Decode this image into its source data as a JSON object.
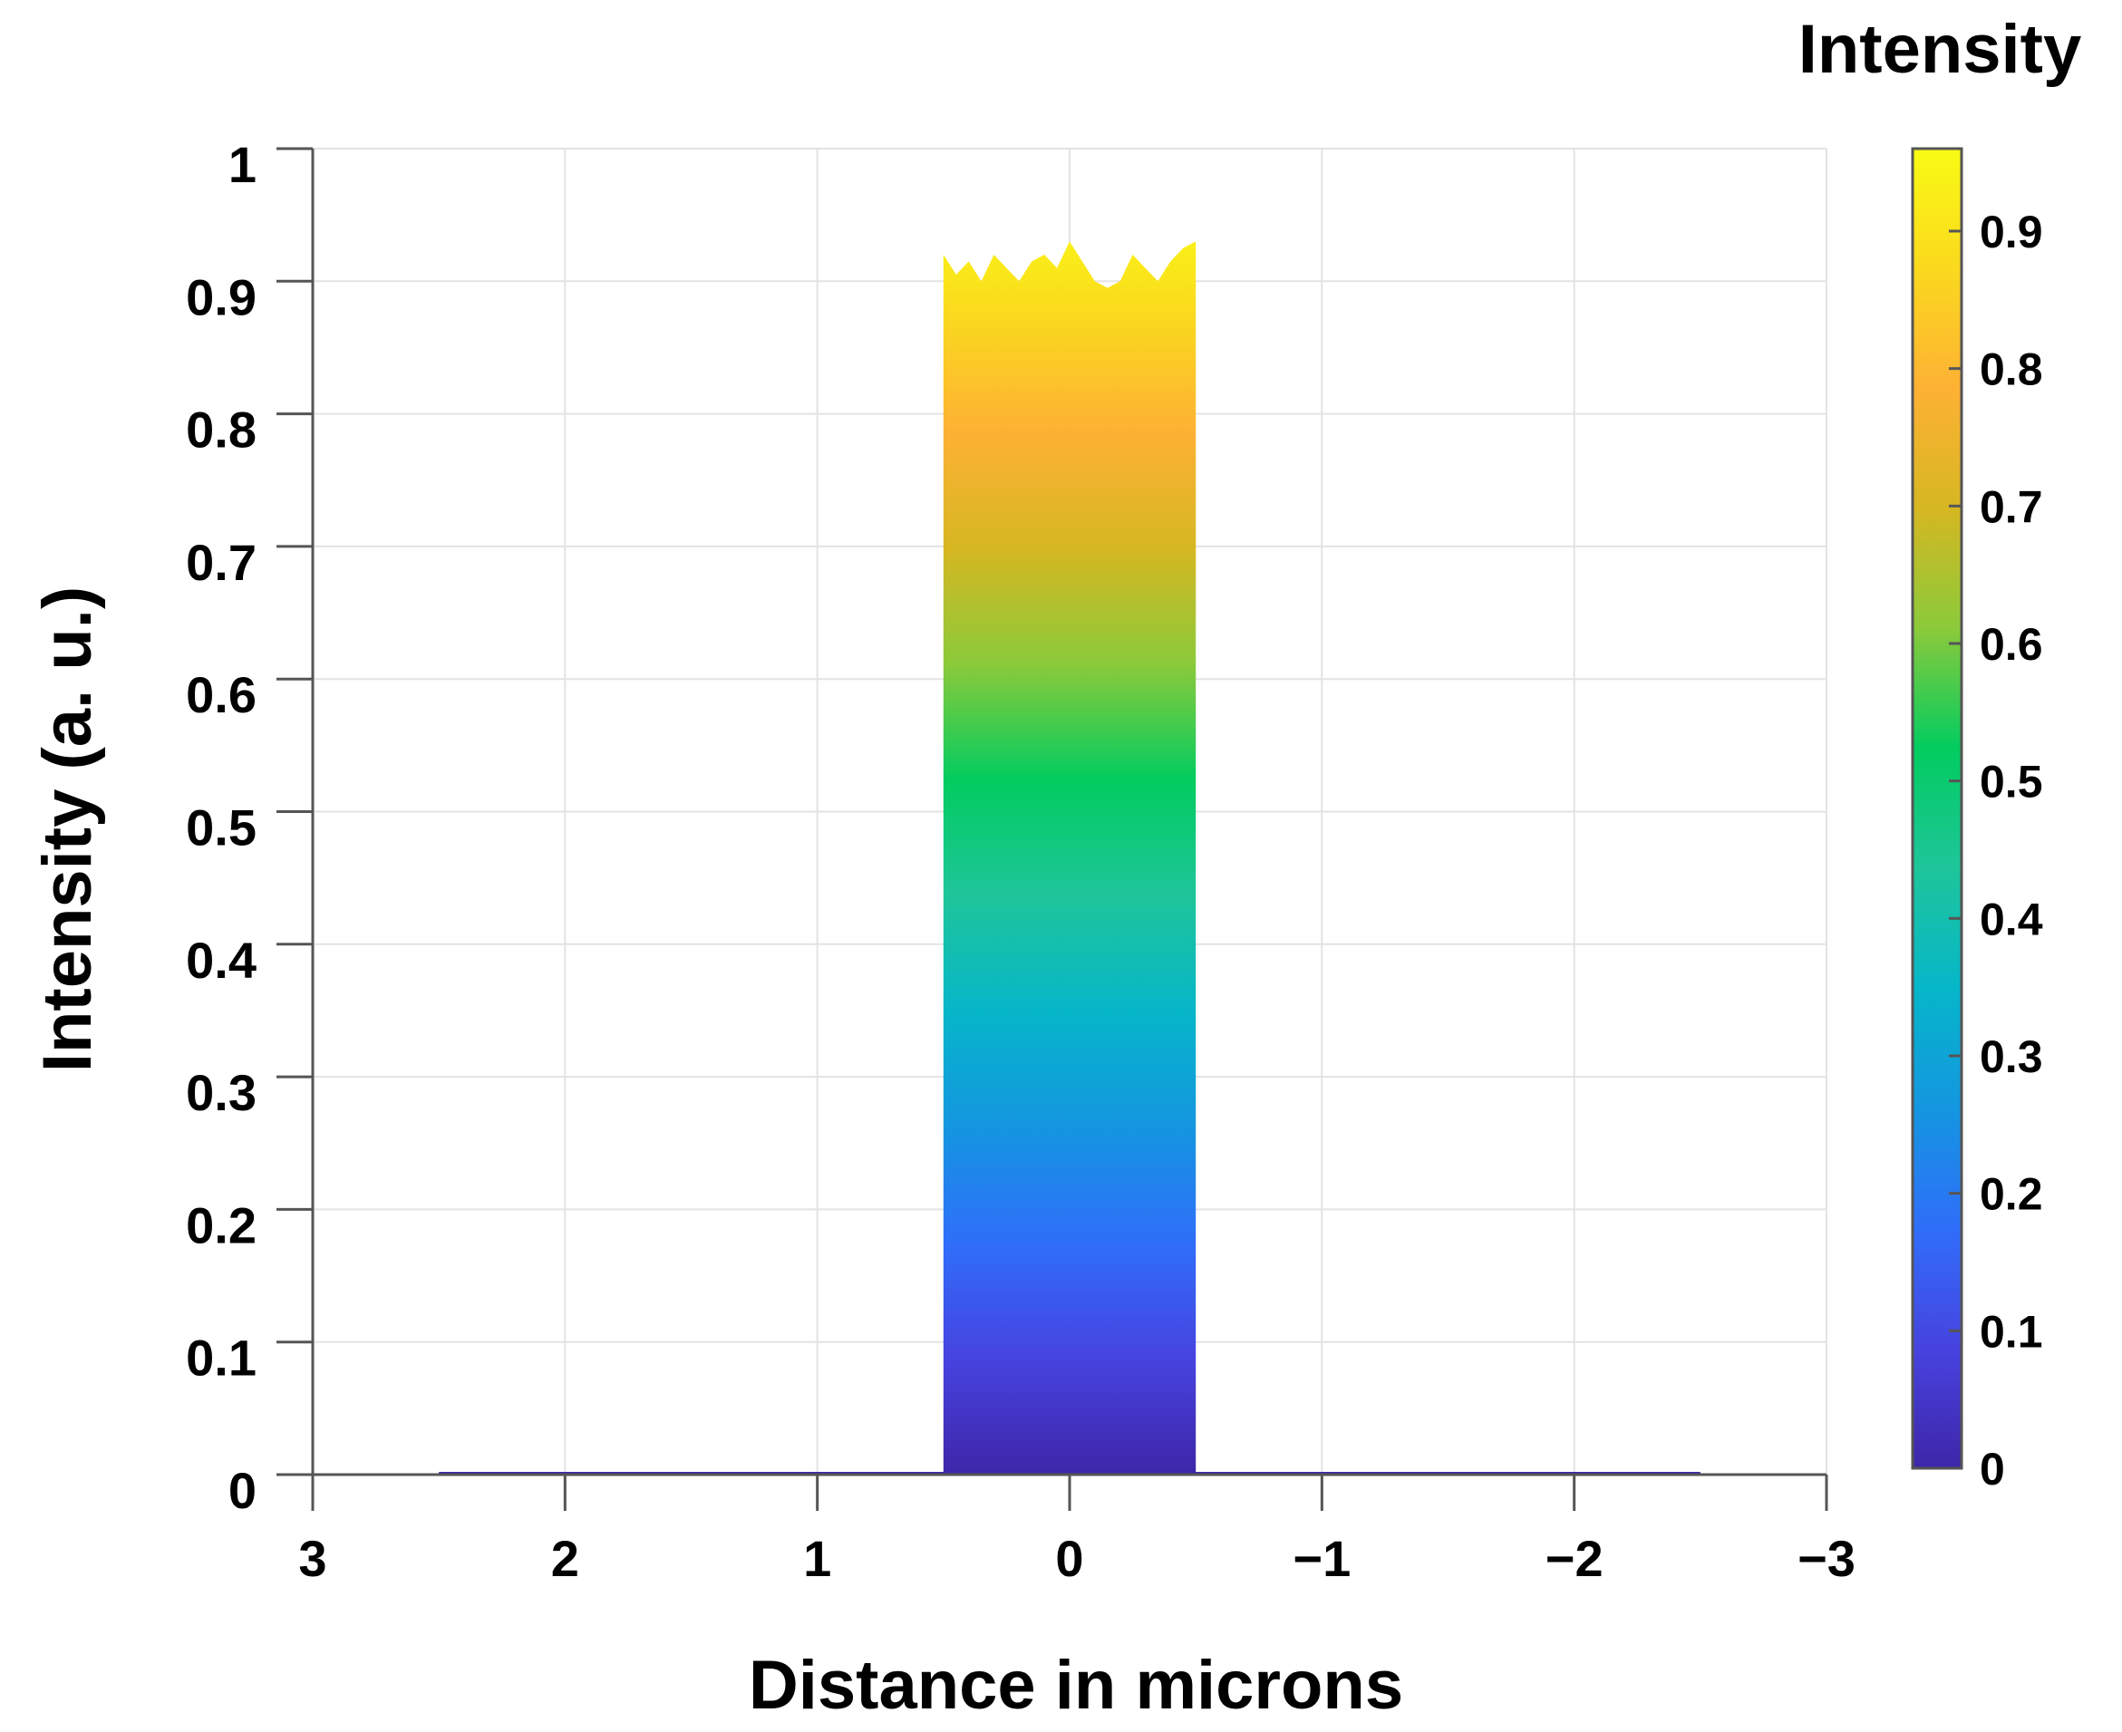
{
  "chart_data": {
    "type": "area",
    "xlabel": "Distance in microns",
    "ylabel": "Intensity (a. u.)",
    "colorbar_label": "Intensity",
    "xlim": [
      3,
      -3
    ],
    "x_reversed": true,
    "ylim": [
      0,
      1
    ],
    "x_ticks": [
      3,
      2,
      1,
      0,
      -1,
      -2,
      -3
    ],
    "x_tick_labels": [
      "3",
      "2",
      "1",
      "0",
      "−1",
      "−2",
      "−3"
    ],
    "y_ticks": [
      0,
      0.1,
      0.2,
      0.3,
      0.4,
      0.5,
      0.6,
      0.7,
      0.8,
      0.9,
      1
    ],
    "y_tick_labels": [
      "0",
      "0.1",
      "0.2",
      "0.3",
      "0.4",
      "0.5",
      "0.6",
      "0.7",
      "0.8",
      "0.9",
      "1"
    ],
    "colorbar_ticks": [
      0,
      0.1,
      0.2,
      0.3,
      0.4,
      0.5,
      0.6,
      0.7,
      0.8,
      0.9
    ],
    "colorbar_tick_labels": [
      "0",
      "0.1",
      "0.2",
      "0.3",
      "0.4",
      "0.5",
      "0.6",
      "0.7",
      "0.8",
      "0.9"
    ],
    "colorbar_range": [
      0,
      0.96
    ],
    "colormap": "parula",
    "colormap_stops": [
      "#3e26a8",
      "#4743e0",
      "#2f6ef9",
      "#1496e0",
      "#06b6c9",
      "#1ec59a",
      "#02cc5f",
      "#8bca3a",
      "#d6b722",
      "#fdb134",
      "#fad91e",
      "#f9fb14"
    ],
    "grid": true,
    "series": [
      {
        "x": [
          2.5,
          0.5,
          0.5,
          0.45,
          0.4,
          0.35,
          0.3,
          0.25,
          0.2,
          0.15,
          0.1,
          0.05,
          0.0,
          -0.05,
          -0.1,
          -0.15,
          -0.2,
          -0.25,
          -0.3,
          -0.35,
          -0.4,
          -0.45,
          -0.5,
          -0.5,
          -2.5
        ],
        "y": [
          0.0,
          0.0,
          0.92,
          0.905,
          0.915,
          0.9,
          0.92,
          0.91,
          0.9,
          0.915,
          0.92,
          0.91,
          0.93,
          0.915,
          0.9,
          0.895,
          0.9,
          0.92,
          0.91,
          0.9,
          0.915,
          0.925,
          0.93,
          0.0,
          0.0
        ]
      }
    ]
  }
}
